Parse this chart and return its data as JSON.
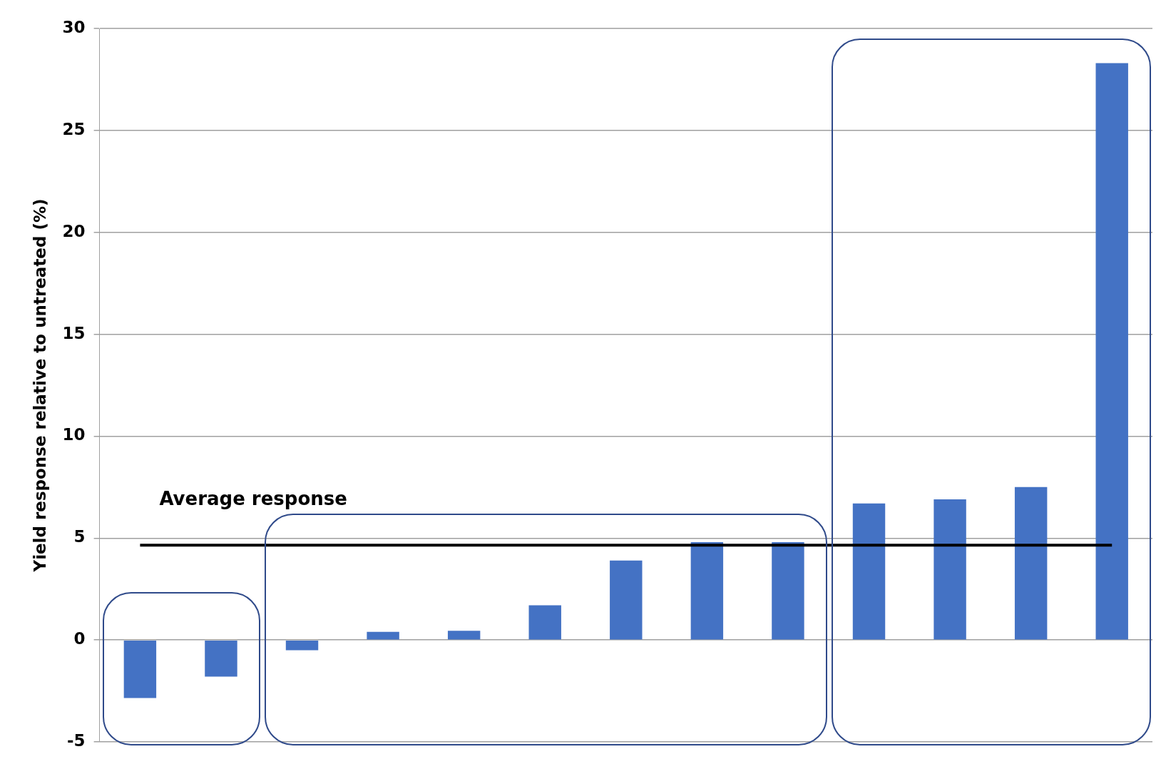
{
  "chart_data": {
    "type": "bar",
    "ylabel": "Yield response relative to untreated (%)",
    "categories": [
      null,
      null,
      null,
      null,
      null,
      null,
      null,
      null,
      null,
      null,
      null,
      null,
      null
    ],
    "values": [
      -2.85,
      -1.8,
      -0.5,
      0.4,
      0.45,
      1.7,
      3.9,
      4.8,
      4.8,
      6.7,
      6.9,
      7.5,
      28.3
    ],
    "color": "#4472c4",
    "ylim": [
      -5,
      30
    ],
    "yticks": [
      -5,
      0,
      5,
      10,
      15,
      20,
      25,
      30
    ],
    "grid": "y",
    "ref_lines": [
      {
        "axis": "y",
        "value": 4.65,
        "label": "Average response",
        "color": "#000000"
      }
    ]
  }
}
